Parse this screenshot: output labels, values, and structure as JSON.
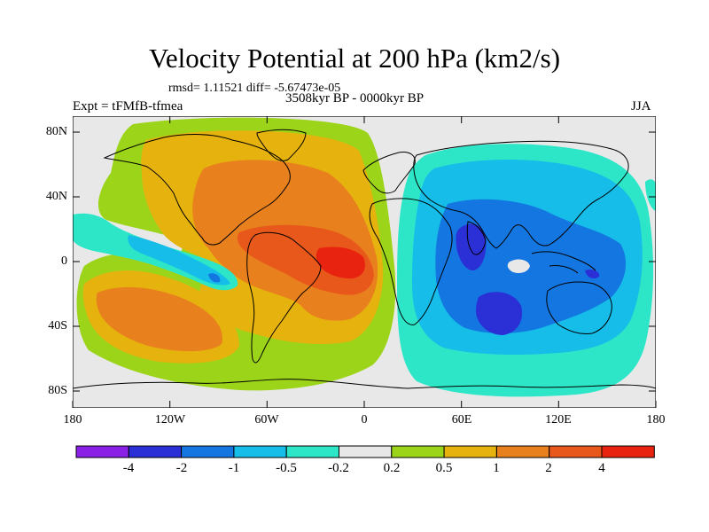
{
  "header": {
    "title": "Velocity Potential at 200 hPa (km2/s)",
    "stats": "rmsd= 1.11521 diff= -5.67473e-05",
    "experiment": "Expt = tFMfB-tfmea",
    "period": "3508kyr BP - 0000kyr BP",
    "season": "JJA"
  },
  "axes": {
    "lat_ticks": [
      "80N",
      "40N",
      "0",
      "40S",
      "80S"
    ],
    "lon_ticks": [
      "180",
      "120W",
      "60W",
      "0",
      "60E",
      "120E",
      "180"
    ]
  },
  "colorbar": {
    "colors": [
      "#8a1fe6",
      "#2b2fd6",
      "#1476e0",
      "#15bde8",
      "#2de6c8",
      "#e8e8e8",
      "#9cd41a",
      "#e6b20e",
      "#e8801e",
      "#e8581a",
      "#e82410"
    ],
    "labels": [
      "-4",
      "-2",
      "-1",
      "-0.5",
      "-0.2",
      "0.2",
      "0.5",
      "1",
      "2",
      "4"
    ]
  }
}
